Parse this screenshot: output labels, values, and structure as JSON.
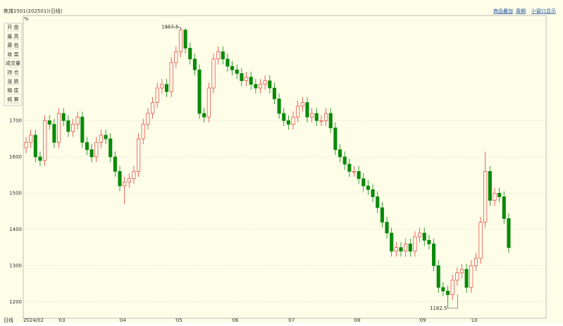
{
  "header": {
    "title": "焦煤2501(202501)(日线)",
    "links": [
      "商品叠加",
      "周期",
      "小窗口显示"
    ]
  },
  "menu": [
    "开 盘",
    "最 高",
    "最 低",
    "收 盘",
    "成交量",
    "持 仓",
    "涨 跌",
    "幅 度",
    "结 算"
  ],
  "footer": {
    "period": "日线"
  },
  "chart_data": {
    "type": "candlestick",
    "y_label": "%",
    "up_color": "#e8403c",
    "down_color": "#0a8a0a",
    "grid": true,
    "ylim": [
      1155,
      1990
    ],
    "yticks": [
      1200,
      1300,
      1400,
      1500,
      1600,
      1700
    ],
    "categories": [
      "2024/02",
      null,
      null,
      null,
      null,
      null,
      null,
      "03",
      null,
      null,
      null,
      null,
      null,
      null,
      null,
      null,
      null,
      null,
      null,
      null,
      "04",
      null,
      null,
      null,
      null,
      null,
      null,
      null,
      null,
      null,
      null,
      null,
      "05",
      null,
      null,
      null,
      null,
      null,
      null,
      null,
      null,
      null,
      null,
      null,
      "06",
      null,
      null,
      null,
      null,
      null,
      null,
      null,
      null,
      null,
      null,
      null,
      "07",
      null,
      null,
      null,
      null,
      null,
      null,
      null,
      null,
      null,
      null,
      null,
      null,
      null,
      "08",
      null,
      null,
      null,
      null,
      null,
      null,
      null,
      null,
      null,
      null,
      null,
      null,
      null,
      "09",
      null,
      null,
      null,
      null,
      null,
      null,
      null,
      null,
      null,
      null,
      "10",
      null,
      null,
      null,
      null,
      null,
      null,
      null,
      null
    ],
    "open": [
      1625,
      1640,
      1660,
      1600,
      1590,
      1700,
      1690,
      1640,
      1720,
      1700,
      1670,
      1690,
      1710,
      1640,
      1620,
      1600,
      1640,
      1660,
      1650,
      1600,
      1560,
      1520,
      1530,
      1540,
      1560,
      1650,
      1690,
      1720,
      1750,
      1790,
      1800,
      1780,
      1860,
      1890,
      1950,
      1900,
      1870,
      1840,
      1720,
      1710,
      1790,
      1870,
      1890,
      1870,
      1850,
      1840,
      1830,
      1810,
      1820,
      1800,
      1790,
      1800,
      1810,
      1790,
      1760,
      1720,
      1700,
      1690,
      1710,
      1740,
      1750,
      1710,
      1720,
      1700,
      1700,
      1720,
      1680,
      1620,
      1600,
      1580,
      1560,
      1560,
      1540,
      1520,
      1510,
      1490,
      1460,
      1420,
      1390,
      1340,
      1350,
      1340,
      1360,
      1340,
      1380,
      1390,
      1370,
      1360,
      1300,
      1240,
      1230,
      1220,
      1260,
      1280,
      1290,
      1240,
      1300,
      1320,
      1420,
      1560,
      1480,
      1500,
      1490,
      1430
    ],
    "high": [
      1655,
      1675,
      1675,
      1615,
      1715,
      1715,
      1705,
      1735,
      1735,
      1715,
      1705,
      1725,
      1725,
      1655,
      1635,
      1655,
      1675,
      1675,
      1665,
      1615,
      1575,
      1545,
      1555,
      1575,
      1665,
      1705,
      1735,
      1765,
      1805,
      1815,
      1815,
      1875,
      1905,
      1957.5,
      1955,
      1915,
      1885,
      1855,
      1735,
      1805,
      1885,
      1905,
      1905,
      1885,
      1865,
      1855,
      1845,
      1835,
      1835,
      1815,
      1815,
      1825,
      1825,
      1805,
      1775,
      1735,
      1715,
      1725,
      1755,
      1765,
      1765,
      1735,
      1735,
      1715,
      1735,
      1735,
      1695,
      1635,
      1615,
      1595,
      1575,
      1575,
      1555,
      1535,
      1525,
      1505,
      1475,
      1435,
      1405,
      1365,
      1365,
      1375,
      1375,
      1395,
      1405,
      1405,
      1385,
      1375,
      1315,
      1255,
      1245,
      1275,
      1295,
      1305,
      1305,
      1315,
      1335,
      1435,
      1615,
      1575,
      1515,
      1515,
      1505,
      1445
    ],
    "low": [
      1610,
      1625,
      1585,
      1575,
      1575,
      1675,
      1625,
      1625,
      1685,
      1655,
      1655,
      1675,
      1625,
      1605,
      1585,
      1585,
      1625,
      1635,
      1585,
      1545,
      1505,
      1470,
      1515,
      1525,
      1545,
      1635,
      1675,
      1705,
      1735,
      1775,
      1765,
      1765,
      1845,
      1875,
      1885,
      1855,
      1825,
      1705,
      1695,
      1695,
      1775,
      1855,
      1855,
      1835,
      1825,
      1815,
      1795,
      1795,
      1785,
      1775,
      1775,
      1785,
      1775,
      1745,
      1705,
      1685,
      1675,
      1675,
      1695,
      1725,
      1695,
      1695,
      1685,
      1685,
      1685,
      1665,
      1605,
      1585,
      1565,
      1545,
      1545,
      1525,
      1505,
      1495,
      1475,
      1445,
      1405,
      1375,
      1325,
      1325,
      1325,
      1325,
      1325,
      1325,
      1365,
      1355,
      1345,
      1285,
      1225,
      1215,
      1182.5,
      1205,
      1245,
      1265,
      1225,
      1225,
      1285,
      1305,
      1405,
      1465,
      1465,
      1475,
      1415,
      1335
    ],
    "close": [
      1640,
      1660,
      1600,
      1590,
      1700,
      1690,
      1640,
      1720,
      1700,
      1670,
      1690,
      1710,
      1640,
      1620,
      1600,
      1640,
      1660,
      1650,
      1600,
      1560,
      1520,
      1530,
      1540,
      1560,
      1650,
      1690,
      1720,
      1750,
      1790,
      1800,
      1780,
      1860,
      1890,
      1950,
      1900,
      1870,
      1840,
      1720,
      1710,
      1790,
      1870,
      1890,
      1870,
      1850,
      1840,
      1830,
      1810,
      1820,
      1800,
      1790,
      1800,
      1810,
      1790,
      1760,
      1720,
      1700,
      1690,
      1710,
      1740,
      1750,
      1710,
      1720,
      1700,
      1700,
      1720,
      1680,
      1620,
      1600,
      1580,
      1560,
      1560,
      1540,
      1520,
      1510,
      1490,
      1460,
      1420,
      1390,
      1340,
      1350,
      1340,
      1360,
      1340,
      1380,
      1390,
      1370,
      1360,
      1300,
      1240,
      1230,
      1220,
      1260,
      1280,
      1290,
      1240,
      1300,
      1320,
      1420,
      1560,
      1480,
      1500,
      1490,
      1430,
      1350
    ]
  }
}
